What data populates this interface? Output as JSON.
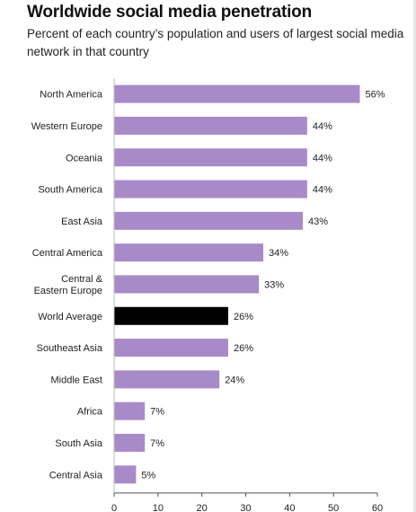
{
  "title": "Worldwide social media penetration",
  "subtitle": "Percent of each country’s population and users of largest social media network in that country",
  "colors": {
    "bar": "#a98ac8",
    "highlight": "#000000",
    "axis": "#555555"
  },
  "chart_data": {
    "type": "bar",
    "orientation": "horizontal",
    "categories": [
      [
        "North America"
      ],
      [
        "Western Europe"
      ],
      [
        "Oceania"
      ],
      [
        "South America"
      ],
      [
        "East Asia"
      ],
      [
        "Central America"
      ],
      [
        "Central &",
        "Eastern Europe"
      ],
      [
        "World Average"
      ],
      [
        "Southeast Asia"
      ],
      [
        "Middle East"
      ],
      [
        "Africa"
      ],
      [
        "South Asia"
      ],
      [
        "Central Asia"
      ]
    ],
    "values": [
      56,
      44,
      44,
      44,
      43,
      34,
      33,
      26,
      26,
      24,
      7,
      7,
      5
    ],
    "value_labels": [
      "56%",
      "44%",
      "44%",
      "44%",
      "43%",
      "34%",
      "33%",
      "26%",
      "26%",
      "24%",
      "7%",
      "7%",
      "5%"
    ],
    "highlight_index": 7,
    "xlim": [
      0,
      60
    ],
    "xticks": [
      0,
      10,
      20,
      30,
      40,
      50,
      60
    ],
    "grid": false
  }
}
